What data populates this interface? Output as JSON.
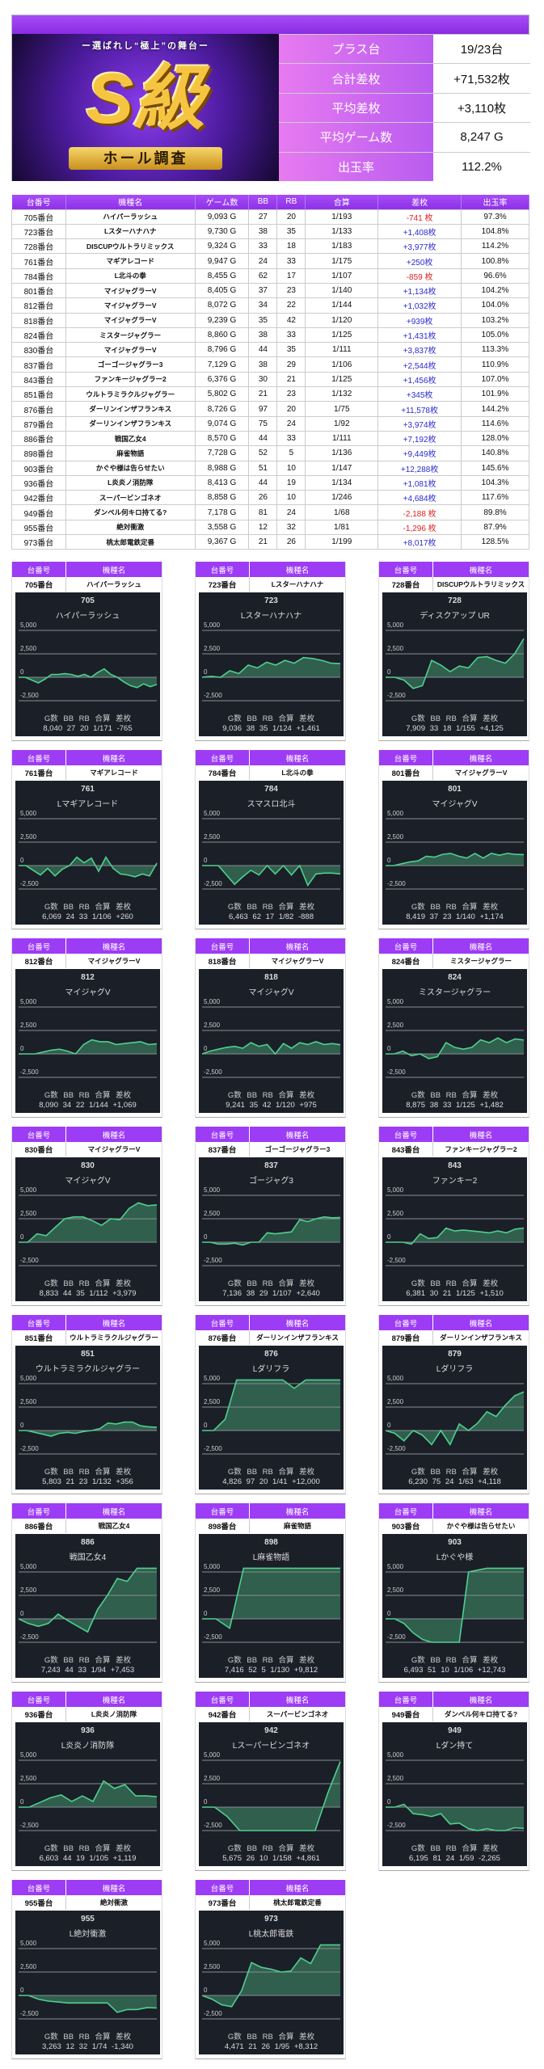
{
  "summary": {
    "logo": {
      "subtitle": "ー選ばれし“極上”の舞台ー",
      "main": "S級",
      "ribbon": "ホール調査"
    },
    "rows": [
      {
        "label": "プラス台",
        "value": "19/23台"
      },
      {
        "label": "合計差枚",
        "value": "+71,532枚"
      },
      {
        "label": "平均差枚",
        "value": "+3,110枚"
      },
      {
        "label": "平均ゲーム数",
        "value": "8,247 G"
      },
      {
        "label": "出玉率",
        "value": "112.2%"
      }
    ]
  },
  "table": {
    "headers": [
      "台番号",
      "機種名",
      "ゲーム数",
      "BB",
      "RB",
      "合算",
      "差枚",
      "出玉率"
    ],
    "rows": [
      [
        "705番台",
        "ハイパーラッシュ",
        "9,093 G",
        "27",
        "20",
        "1/193",
        "-741 枚",
        "97.3%"
      ],
      [
        "723番台",
        "Lスターハナハナ",
        "9,730 G",
        "38",
        "35",
        "1/133",
        "+1,408枚",
        "104.8%"
      ],
      [
        "728番台",
        "DISCUPウルトラリミックス",
        "9,324 G",
        "33",
        "18",
        "1/183",
        "+3,977枚",
        "114.2%"
      ],
      [
        "761番台",
        "マギアレコード",
        "9,947 G",
        "24",
        "33",
        "1/175",
        "+250枚",
        "100.8%"
      ],
      [
        "784番台",
        "L北斗の拳",
        "8,455 G",
        "62",
        "17",
        "1/107",
        "-859 枚",
        "96.6%"
      ],
      [
        "801番台",
        "マイジャグラーV",
        "8,405 G",
        "37",
        "23",
        "1/140",
        "+1,134枚",
        "104.2%"
      ],
      [
        "812番台",
        "マイジャグラーV",
        "8,072 G",
        "34",
        "22",
        "1/144",
        "+1,032枚",
        "104.0%"
      ],
      [
        "818番台",
        "マイジャグラーV",
        "9,239 G",
        "35",
        "42",
        "1/120",
        "+939枚",
        "103.2%"
      ],
      [
        "824番台",
        "ミスタージャグラー",
        "8,860 G",
        "38",
        "33",
        "1/125",
        "+1,431枚",
        "105.0%"
      ],
      [
        "830番台",
        "マイジャグラーV",
        "8,796 G",
        "44",
        "35",
        "1/111",
        "+3,837枚",
        "113.3%"
      ],
      [
        "837番台",
        "ゴーゴージャグラー3",
        "7,129 G",
        "38",
        "29",
        "1/106",
        "+2,544枚",
        "110.9%"
      ],
      [
        "843番台",
        "ファンキージャグラー2",
        "6,376 G",
        "30",
        "21",
        "1/125",
        "+1,456枚",
        "107.0%"
      ],
      [
        "851番台",
        "ウルトラミラクルジャグラー",
        "5,802 G",
        "21",
        "23",
        "1/132",
        "+345枚",
        "101.9%"
      ],
      [
        "876番台",
        "ダーリンインザフランキス",
        "8,726 G",
        "97",
        "20",
        "1/75",
        "+11,578枚",
        "144.2%"
      ],
      [
        "879番台",
        "ダーリンインザフランキス",
        "9,074 G",
        "75",
        "24",
        "1/92",
        "+3,974枚",
        "114.6%"
      ],
      [
        "886番台",
        "戦国乙女4",
        "8,570 G",
        "44",
        "33",
        "1/111",
        "+7,192枚",
        "128.0%"
      ],
      [
        "898番台",
        "麻雀物語",
        "7,728 G",
        "52",
        "5",
        "1/136",
        "+9,449枚",
        "140.8%"
      ],
      [
        "903番台",
        "かぐや様は告らせたい",
        "8,988 G",
        "51",
        "10",
        "1/147",
        "+12,288枚",
        "145.6%"
      ],
      [
        "936番台",
        "L炎炎ノ消防隊",
        "8,413 G",
        "44",
        "19",
        "1/134",
        "+1,081枚",
        "104.3%"
      ],
      [
        "942番台",
        "スーパービンゴネオ",
        "8,858 G",
        "26",
        "10",
        "1/246",
        "+4,684枚",
        "117.6%"
      ],
      [
        "949番台",
        "ダンベル何キロ持てる?",
        "7,178 G",
        "81",
        "24",
        "1/68",
        "-2,188 枚",
        "89.8%"
      ],
      [
        "955番台",
        "絶対衝激",
        "3,558 G",
        "12",
        "32",
        "1/81",
        "-1,296 枚",
        "87.9%"
      ],
      [
        "973番台",
        "桃太郎電鉄定番",
        "9,367 G",
        "21",
        "26",
        "1/199",
        "+8,017枚",
        "128.5%"
      ]
    ]
  },
  "cards": {
    "header_labels": [
      "台番号",
      "機種名"
    ],
    "stat_labels": "G数 BB RB 合算 差枚",
    "axis_ticks": [
      "5,000",
      "2,500",
      "0",
      "-2,500"
    ],
    "colors": {
      "line": "#4fd08e",
      "fill": "#3f8a66",
      "panel": "#1b1f28",
      "header": "#9d3cf5"
    },
    "items": [
      {
        "unit": "705番台",
        "model": "ハイパーラッシュ",
        "num": "705",
        "chart_name": "ハイパーラッシュ",
        "stats": "8,040 27 20 1/171 -765",
        "values": [
          0,
          0,
          -300,
          -600,
          -200,
          300,
          300,
          400,
          300,
          100,
          300,
          0,
          500,
          900,
          300,
          0,
          -500,
          -900,
          -1100,
          -700,
          -1000,
          -765
        ]
      },
      {
        "unit": "723番台",
        "model": "Lスターハナハナ",
        "num": "723",
        "chart_name": "Lスターハナハナ",
        "stats": "9,036 38 35 1/124 +1,461",
        "values": [
          0,
          100,
          0,
          700,
          400,
          1300,
          1000,
          1600,
          1300,
          1800,
          1500,
          2100,
          2000,
          1800,
          1500,
          1461
        ]
      },
      {
        "unit": "728番台",
        "model": "DISCUPウルトラリミックス",
        "num": "728",
        "chart_name": "ディスクアップ UR",
        "stats": "7,909 33 18 1/155 +4,125",
        "values": [
          0,
          0,
          -300,
          -1200,
          -900,
          1800,
          1300,
          600,
          1200,
          1000,
          2100,
          2200,
          1800,
          1500,
          2500,
          4125
        ]
      },
      {
        "unit": "761番台",
        "model": "マギアレコード",
        "num": "761",
        "chart_name": "Lマギアレコード",
        "stats": "6,069 24 33 1/106 +260",
        "values": [
          0,
          0,
          -500,
          -1000,
          -300,
          -1100,
          -400,
          0,
          900,
          300,
          800,
          -600,
          900,
          -300,
          -900,
          -1000,
          -1200,
          -900,
          -1100,
          260
        ]
      },
      {
        "unit": "784番台",
        "model": "L北斗の拳",
        "num": "784",
        "chart_name": "スマスロ北斗",
        "stats": "6,463 62 17 1/82 -888",
        "values": [
          0,
          0,
          0,
          -1000,
          -2000,
          -1200,
          -500,
          -1000,
          0,
          -900,
          0,
          -1000,
          0,
          -2100,
          -900,
          -800,
          -800,
          -888
        ]
      },
      {
        "unit": "801番台",
        "model": "マイジャグラーV",
        "num": "801",
        "chart_name": "マイジャグV",
        "stats": "8,419 37 23 1/140 +1,174",
        "values": [
          0,
          0,
          200,
          400,
          500,
          1000,
          900,
          1200,
          1300,
          1000,
          800,
          1300,
          800,
          1300,
          1100,
          1300,
          1200,
          1174
        ]
      },
      {
        "unit": "812番台",
        "model": "マイジャグラーV",
        "num": "812",
        "chart_name": "マイジャグV",
        "stats": "8,090 34 22 1/144 +1,069",
        "values": [
          0,
          0,
          0,
          200,
          400,
          500,
          300,
          0,
          1000,
          1500,
          1300,
          1300,
          1000,
          1100,
          1200,
          1300,
          1000,
          1069
        ]
      },
      {
        "unit": "818番台",
        "model": "マイジャグラーV",
        "num": "818",
        "chart_name": "マイジャグV",
        "stats": "9,241 35 42 1/120 +975",
        "values": [
          0,
          300,
          500,
          700,
          800,
          600,
          1200,
          800,
          1000,
          0,
          1100,
          600,
          1200,
          1000,
          1300,
          1000,
          1100,
          975
        ]
      },
      {
        "unit": "824番台",
        "model": "ミスタージャグラー",
        "num": "824",
        "chart_name": "ミスタージャグラー",
        "stats": "8,875 38 33 1/125 +1,482",
        "values": [
          0,
          0,
          300,
          -200,
          0,
          -500,
          -300,
          1200,
          700,
          500,
          700,
          1500,
          1200,
          1700,
          1200,
          1600,
          1482
        ]
      },
      {
        "unit": "830番台",
        "model": "マイジャグラーV",
        "num": "830",
        "chart_name": "マイジャグV",
        "stats": "8,833 44 35 1/112 +3,979",
        "values": [
          0,
          0,
          900,
          700,
          1600,
          2500,
          2700,
          2700,
          2300,
          1800,
          2500,
          2400,
          3600,
          4200,
          3900,
          3979
        ]
      },
      {
        "unit": "837番台",
        "model": "ゴーゴージャグラー3",
        "num": "837",
        "chart_name": "ゴージャグ3",
        "stats": "7,136 38 29 1/107 +2,640",
        "values": [
          0,
          0,
          -200,
          -200,
          -100,
          -300,
          0,
          0,
          1000,
          900,
          1000,
          1100,
          2400,
          2200,
          2500,
          2700,
          2600,
          2640
        ]
      },
      {
        "unit": "843番台",
        "model": "ファンキージャグラー2",
        "num": "843",
        "chart_name": "ファンキー2",
        "stats": "6,381 30 21 1/125 +1,510",
        "values": [
          0,
          0,
          0,
          -200,
          900,
          400,
          500,
          1500,
          1200,
          1300,
          1200,
          1100,
          1000,
          1200,
          1000,
          1400,
          1510
        ]
      },
      {
        "unit": "851番台",
        "model": "ウルトラミラクルジャグラー",
        "num": "851",
        "chart_name": "ウルトラミラクルジャグラー",
        "stats": "5,803 21 23 1/132 +356",
        "values": [
          0,
          0,
          -200,
          -400,
          -600,
          -300,
          -200,
          -300,
          -100,
          0,
          200,
          800,
          700,
          900,
          900,
          500,
          400,
          356
        ]
      },
      {
        "unit": "876番台",
        "model": "ダーリンインザフランキス",
        "num": "876",
        "chart_name": "Lダリフラ",
        "stats": "4,826 97 20 1/41 +12,000",
        "values": [
          0,
          0,
          1200,
          5400,
          5400,
          5400,
          5400,
          5400,
          4500,
          5400,
          5400,
          5400,
          5400
        ]
      },
      {
        "unit": "879番台",
        "model": "ダーリンインザフランキス",
        "num": "879",
        "chart_name": "Lダリフラ",
        "stats": "6,230 75 24 1/63 +4,118",
        "values": [
          0,
          -300,
          -1100,
          0,
          -500,
          -1500,
          0,
          -1500,
          700,
          0,
          800,
          2000,
          1500,
          2700,
          3700,
          4118
        ]
      },
      {
        "unit": "886番台",
        "model": "戦国乙女4",
        "num": "886",
        "chart_name": "戦国乙女4",
        "stats": "7,243 44 33 1/94 +7,453",
        "values": [
          0,
          -500,
          -800,
          -500,
          500,
          -200,
          -800,
          -1400,
          1000,
          2500,
          4300,
          4000,
          5400,
          5400,
          5400
        ]
      },
      {
        "unit": "898番台",
        "model": "麻雀物語",
        "num": "898",
        "chart_name": "L麻雀物語",
        "stats": "7,416 52 5 1/130 +9,812",
        "values": [
          0,
          0,
          -1000,
          5400,
          5400,
          5400,
          5400,
          5400,
          5400,
          5400,
          5400
        ]
      },
      {
        "unit": "903番台",
        "model": "かぐや様は告らせたい",
        "num": "903",
        "chart_name": "Lかぐや様",
        "stats": "6,493 51 10 1/106 +12,743",
        "values": [
          0,
          0,
          -500,
          -1500,
          -2200,
          -2500,
          -2500,
          -2500,
          -2500,
          5000,
          5200,
          5400,
          5400,
          5400,
          5400,
          5400
        ]
      },
      {
        "unit": "936番台",
        "model": "L炎炎ノ消防隊",
        "num": "936",
        "chart_name": "L炎炎ノ消防隊",
        "stats": "6,603 44 19 1/105 +1,119",
        "values": [
          0,
          0,
          500,
          1000,
          1300,
          600,
          1200,
          600,
          2800,
          2000,
          2400,
          1200,
          1200,
          1119
        ]
      },
      {
        "unit": "942番台",
        "model": "スーパービンゴネオ",
        "num": "942",
        "chart_name": "Lスーパービンゴネオ",
        "stats": "5,675 26 10 1/158 +4,861",
        "values": [
          0,
          0,
          -1000,
          -2500,
          -2500,
          -2500,
          -2500,
          -2500,
          -2500,
          -2500,
          1500,
          4861
        ]
      },
      {
        "unit": "949番台",
        "model": "ダンベル何キロ持てる?",
        "num": "949",
        "chart_name": "Lダン持て",
        "stats": "6,195 81 24 1/59 -2,265",
        "values": [
          0,
          0,
          300,
          -700,
          -800,
          -1000,
          -700,
          -1800,
          -1700,
          -2300,
          -2500,
          -2300,
          -2500,
          -2500,
          -2200,
          -2265
        ]
      },
      {
        "unit": "955番台",
        "model": "絶対衝激",
        "num": "955",
        "chart_name": "L絶対衝激",
        "stats": "3,263 12 32 1/74 -1,340",
        "values": [
          0,
          0,
          -400,
          -600,
          -700,
          -800,
          -800,
          -800,
          -800,
          -800,
          -1800,
          -1500,
          -1500,
          -1300,
          -1340
        ]
      },
      {
        "unit": "973番台",
        "model": "桃太郎電鉄定番",
        "num": "973",
        "chart_name": "L桃太郎電鉄",
        "stats": "4,471 21 26 1/95 +8,312",
        "values": [
          0,
          -400,
          -1000,
          -1200,
          500,
          3500,
          3000,
          2800,
          2500,
          2600,
          4000,
          3400,
          5400,
          5400,
          5400
        ]
      }
    ]
  }
}
